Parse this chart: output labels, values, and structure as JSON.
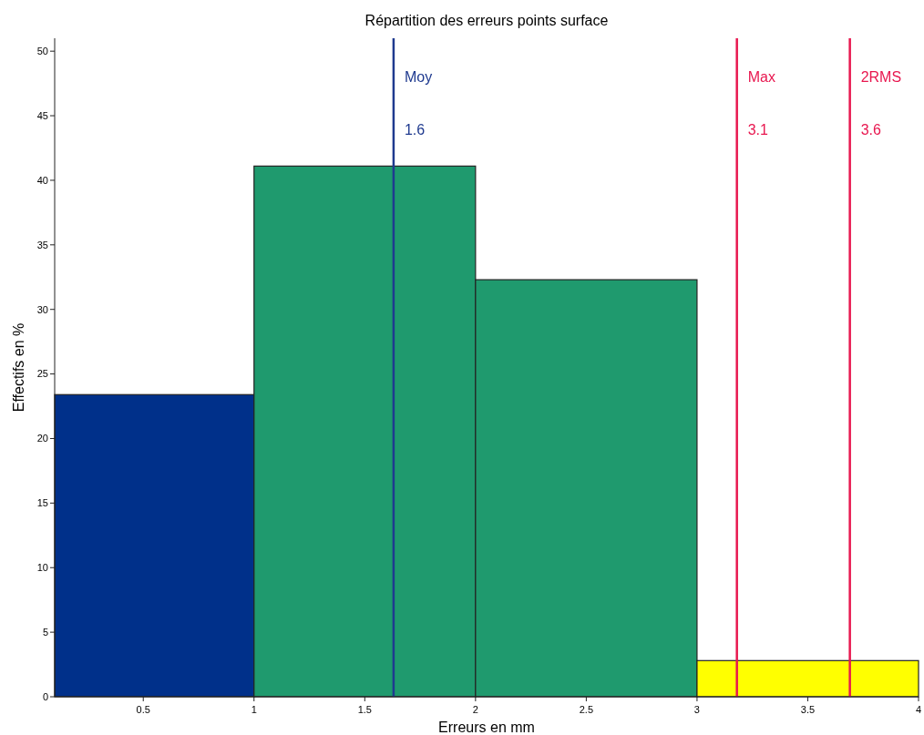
{
  "chart_data": {
    "type": "histogram",
    "title": "Répartition des erreurs points surface",
    "xlabel": "Erreurs en mm",
    "ylabel": "Effectifs en %",
    "bins": [
      0.1,
      1,
      2,
      3,
      4
    ],
    "values": [
      23.4,
      41.1,
      32.3,
      2.8
    ],
    "colors": [
      "#00308a",
      "#1f9a6e",
      "#1f9a6e",
      "#ffff00"
    ],
    "xlim": [
      0.1,
      4
    ],
    "xticks": [
      0.5,
      1,
      1.5,
      2,
      2.5,
      3,
      3.5,
      4
    ],
    "ylim": [
      0,
      51
    ],
    "yticks": [
      0,
      5,
      10,
      15,
      20,
      25,
      30,
      35,
      40,
      45,
      50
    ],
    "ref_lines": [
      {
        "axis": "x",
        "value": 1.63,
        "label": "Moy\n1.6",
        "color": "#1f3a8f"
      },
      {
        "axis": "x",
        "value": 3.18,
        "label": "Max\n3.1",
        "color": "#e8174f"
      },
      {
        "axis": "x",
        "value": 3.69,
        "label": "2RMS\n3.6",
        "color": "#e8174f"
      }
    ],
    "grid": false
  }
}
